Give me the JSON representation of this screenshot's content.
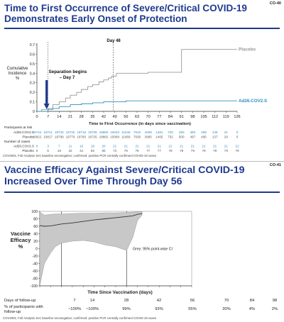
{
  "slide1": {
    "code": "CO-40",
    "title": "Time to First Occurrence of Severe/Critical COVID-19 Demonstrates Early Onset of Protection",
    "ylabel": "Cumulative\nIncidence\n%",
    "footnote": "COV3001; Full Analysis Set; baseline seronegative; confirmed: positive PCR centrally confirmed COVID-19 cases",
    "annotations": {
      "day48": "Day 48",
      "separation": "Separation begins\n– Day 7"
    },
    "risk_table": {
      "header1": "Participants at risk",
      "header2": "Number of cases",
      "rows_at_risk": [
        {
          "label": "Ad26.COV2.S",
          "values": [
            "19744",
            "19741",
            "19734",
            "19725",
            "19718",
            "19705",
            "18880",
            "15043",
            "11046",
            "7919",
            "4039",
            "1481",
            "720",
            "490",
            "480",
            "469",
            "146",
            "31",
            "0"
          ]
        },
        {
          "label": "Placebo",
          "values": [
            "19822",
            "19817",
            "19799",
            "19779",
            "19760",
            "19725",
            "18882",
            "15068",
            "11069",
            "7939",
            "3995",
            "1465",
            "732",
            "500",
            "497",
            "495",
            "137",
            "29",
            "0"
          ]
        }
      ],
      "rows_cases": [
        {
          "label": "Ad26.COV2.S",
          "values": [
            "0",
            "3",
            "7",
            "11",
            "16",
            "18",
            "20",
            "21",
            "21",
            "21",
            "21",
            "21",
            "21",
            "21",
            "21",
            "21",
            "21",
            "21",
            "21"
          ]
        },
        {
          "label": "Placebo",
          "values": [
            "0",
            "5",
            "18",
            "32",
            "44",
            "55",
            "65",
            "73",
            "76",
            "76",
            "77",
            "77",
            "78",
            "78",
            "79",
            "79",
            "79",
            "79",
            "79"
          ]
        }
      ]
    },
    "chart_data": {
      "type": "line",
      "title": "",
      "xlabel": "Time to First Occurrence (in days since vaccination)",
      "ylabel": "Cumulative Incidence %",
      "xticks": [
        0,
        7,
        14,
        21,
        28,
        35,
        42,
        49,
        56,
        63,
        70,
        77,
        84,
        91,
        98,
        105,
        112,
        119,
        126
      ],
      "yticks": [
        0,
        0.1,
        0.2,
        0.3,
        0.4,
        0.5,
        0.6,
        0.7
      ],
      "xlim": [
        0,
        126
      ],
      "ylim": [
        0,
        0.7
      ],
      "reference_lines": [
        {
          "x": 7
        },
        {
          "x": 48
        }
      ],
      "series": [
        {
          "name": "Placebo",
          "color": "#999999",
          "x": [
            0,
            3,
            7,
            10,
            14,
            18,
            21,
            25,
            28,
            32,
            35,
            39,
            42,
            45,
            47,
            50,
            56,
            63,
            70,
            77,
            80,
            84,
            91,
            98,
            105,
            112,
            119,
            126
          ],
          "y": [
            0,
            0.02,
            0.03,
            0.07,
            0.1,
            0.14,
            0.17,
            0.2,
            0.23,
            0.26,
            0.28,
            0.31,
            0.33,
            0.35,
            0.37,
            0.4,
            0.4,
            0.4,
            0.41,
            0.41,
            0.41,
            0.41,
            0.65,
            0.65,
            0.65,
            0.65,
            0.65,
            0.65
          ]
        },
        {
          "name": "Ad26.COV2.S",
          "color": "#2d8fbf",
          "x": [
            0,
            7,
            10,
            14,
            21,
            28,
            35,
            42,
            49,
            56,
            63,
            70,
            126
          ],
          "y": [
            0,
            0.02,
            0.03,
            0.05,
            0.07,
            0.08,
            0.09,
            0.1,
            0.1,
            0.11,
            0.11,
            0.11,
            0.11
          ]
        }
      ]
    }
  },
  "slide2": {
    "code": "CO-41",
    "title": "Vaccine Efficacy Against Severe/Critical COVID-19 Increased Over Time Through Day 56",
    "ylabel": "Vaccine\nEfficacy\n%",
    "ci_note": "Grey: 95% point-wise CI",
    "footnote": "COV3001; Full Analysis Set; baseline seronegative; confirmed: positive PCR centrally confirmed COVID-19 cases",
    "followup": {
      "row1_label": "Days of follow-up",
      "row2_label": "% of participants with\nfollow-up",
      "days": [
        "7",
        "14",
        "28",
        "42",
        "56",
        "70",
        "84",
        "98"
      ],
      "pct": [
        "~100%",
        "~100%",
        "99%",
        "93%",
        "55%",
        "20%",
        "4%",
        "2%"
      ]
    },
    "chart_data": {
      "type": "line",
      "title": "",
      "xlabel": "Time Since Vaccination (days)",
      "ylabel": "Vaccine Efficacy %",
      "xticks": [
        0,
        7,
        14,
        21,
        28,
        35,
        42,
        49,
        56,
        63,
        70,
        77,
        84,
        91,
        98
      ],
      "yticks": [
        -100,
        -80,
        -60,
        -40,
        -20,
        0,
        20,
        40,
        60,
        80,
        100
      ],
      "xlim": [
        0,
        98
      ],
      "ylim": [
        -100,
        100
      ],
      "reference_lines": [
        {
          "x": 14
        },
        {
          "x": 56
        }
      ],
      "series": [
        {
          "name": "",
          "color": "#333333",
          "x": [
            0,
            3,
            7,
            10,
            14,
            21,
            28,
            35,
            42,
            49,
            56,
            60,
            63,
            66
          ],
          "y": [
            62,
            60,
            61,
            63,
            66,
            69,
            73,
            77,
            80,
            83,
            86,
            88,
            92,
            94
          ]
        }
      ],
      "ci_band": {
        "x": [
          0,
          3,
          7,
          10,
          14,
          21,
          28,
          35,
          42,
          49,
          56,
          60,
          63,
          66
        ],
        "lower": [
          -100,
          -40,
          -12,
          5,
          15,
          20,
          22,
          18,
          10,
          5,
          -5,
          30,
          75,
          90
        ],
        "upper": [
          98,
          90,
          92,
          93,
          93,
          94,
          95,
          95,
          96,
          96,
          97,
          98,
          99,
          99
        ]
      }
    }
  }
}
